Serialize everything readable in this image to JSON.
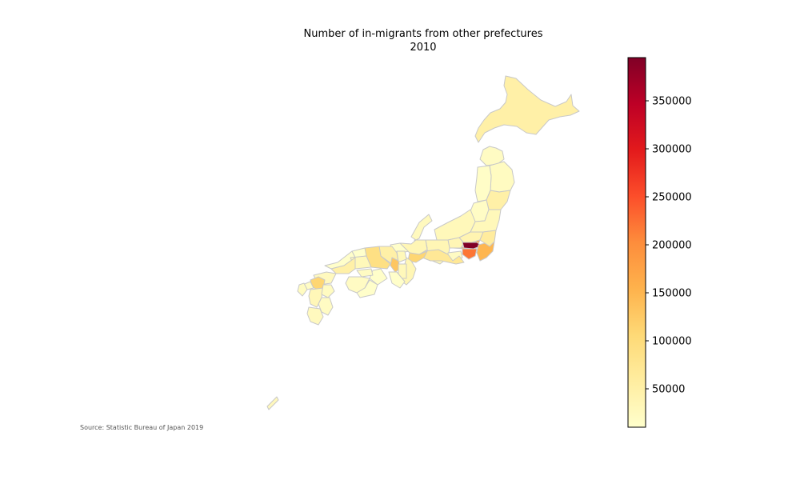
{
  "figure": {
    "title_line1": "Number of in-migrants from other prefectures",
    "title_line2": "2010",
    "source": "Source: Statistic Bureau of Japan 2019"
  },
  "colorbar": {
    "colormap": [
      "#ffffcc",
      "#ffeda0",
      "#fed976",
      "#feb24c",
      "#fd8d3c",
      "#fc4e2a",
      "#e31a1c",
      "#bd0026",
      "#800026"
    ],
    "min": 10000,
    "max": 395000,
    "ticks": [
      50000,
      100000,
      150000,
      200000,
      250000,
      300000,
      350000
    ],
    "tick_labels": [
      "50000",
      "100000",
      "150000",
      "200000",
      "250000",
      "300000",
      "350000"
    ]
  },
  "regions": [
    {
      "name": "Hokkaido",
      "value": 50000
    },
    {
      "name": "Aomori",
      "value": 20000
    },
    {
      "name": "Iwate",
      "value": 22000
    },
    {
      "name": "Akita",
      "value": 15000
    },
    {
      "name": "Miyagi",
      "value": 50000
    },
    {
      "name": "Yamagata",
      "value": 18000
    },
    {
      "name": "Fukushima",
      "value": 30000
    },
    {
      "name": "Niigata",
      "value": 30000
    },
    {
      "name": "Tochigi",
      "value": 40000
    },
    {
      "name": "Ibaraki",
      "value": 60000
    },
    {
      "name": "Gunma",
      "value": 35000
    },
    {
      "name": "Nagano",
      "value": 35000
    },
    {
      "name": "Saitama",
      "value": 170000
    },
    {
      "name": "Tokyo",
      "value": 395000
    },
    {
      "name": "Kanagawa",
      "value": 220000
    },
    {
      "name": "Chiba",
      "value": 150000
    },
    {
      "name": "Yamanashi",
      "value": 20000
    },
    {
      "name": "Shizuoka",
      "value": 70000
    },
    {
      "name": "Toyama",
      "value": 15000
    },
    {
      "name": "Ishikawa",
      "value": 25000
    },
    {
      "name": "Fukui",
      "value": 12000
    },
    {
      "name": "Gifu",
      "value": 35000
    },
    {
      "name": "Aichi",
      "value": 110000
    },
    {
      "name": "Mie",
      "value": 35000
    },
    {
      "name": "Shiga",
      "value": 30000
    },
    {
      "name": "Kyoto",
      "value": 50000
    },
    {
      "name": "Osaka",
      "value": 130000
    },
    {
      "name": "Hyogo",
      "value": 90000
    },
    {
      "name": "Nara",
      "value": 30000
    },
    {
      "name": "Wakayama",
      "value": 12000
    },
    {
      "name": "Tottori",
      "value": 10000
    },
    {
      "name": "Shimane",
      "value": 12000
    },
    {
      "name": "Okayama",
      "value": 30000
    },
    {
      "name": "Hiroshima",
      "value": 50000
    },
    {
      "name": "Yamaguchi",
      "value": 25000
    },
    {
      "name": "Tokushima",
      "value": 12000
    },
    {
      "name": "Kagawa",
      "value": 20000
    },
    {
      "name": "Ehime",
      "value": 20000
    },
    {
      "name": "Kochi",
      "value": 12000
    },
    {
      "name": "Fukuoka",
      "value": 110000
    },
    {
      "name": "Saga",
      "value": 18000
    },
    {
      "name": "Nagasaki",
      "value": 22000
    },
    {
      "name": "Kumamoto",
      "value": 32000
    },
    {
      "name": "Oita",
      "value": 22000
    },
    {
      "name": "Miyazaki",
      "value": 20000
    },
    {
      "name": "Kagoshima",
      "value": 25000
    },
    {
      "name": "Okinawa",
      "value": 28000
    }
  ]
}
